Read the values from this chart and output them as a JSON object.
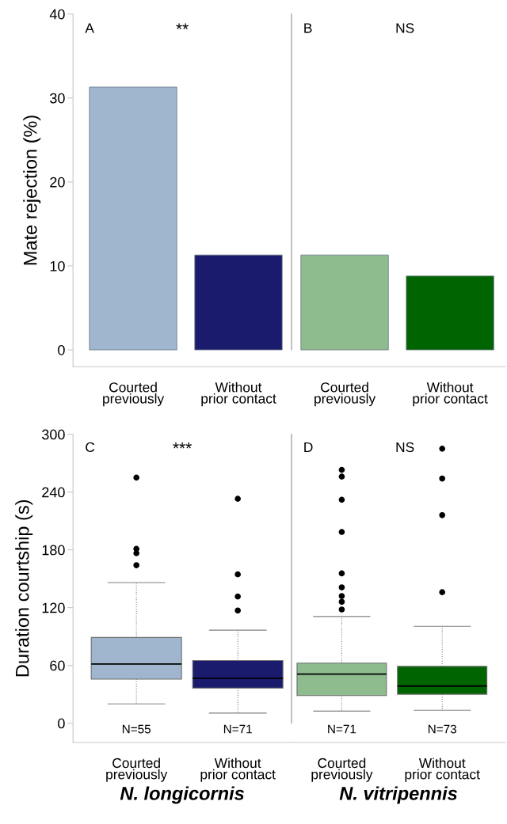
{
  "chart_data": [
    {
      "type": "bar",
      "ylabel": "Mate rejection (%)",
      "categories": [
        "Courted\npreviously",
        "Without\nprior contact"
      ],
      "values": [
        31.3,
        11.3
      ],
      "colors": [
        "#a0b6cf",
        "#1b1b6e"
      ],
      "ylim": [
        -2,
        40
      ],
      "yticks": [
        0,
        10,
        20,
        30,
        40
      ],
      "annotations": [
        "A",
        "**"
      ]
    },
    {
      "type": "bar",
      "categories": [
        "Courted\npreviously",
        "Without\nprior contact"
      ],
      "values": [
        11.3,
        8.8
      ],
      "colors": [
        "#8fbc8f",
        "#006400"
      ],
      "ylim": [
        -2,
        40
      ],
      "tick_labels": "x",
      "annotations": [
        "B",
        "NS"
      ]
    },
    {
      "type": "box",
      "ylabel": "Duration courtship (s)",
      "xlabel": "N. longicornis",
      "categories": [
        "Courted\npreviously",
        "Without\nprior contact"
      ],
      "colors": [
        "#a0b6cf",
        "#1b1b6e"
      ],
      "ylim": [
        -20,
        300
      ],
      "yticks": [
        0,
        60,
        120,
        180,
        240,
        300
      ],
      "boxes": [
        {
          "low": 20,
          "q1": 45.7,
          "median": 61.5,
          "q3": 89,
          "high": 146,
          "outliers": [
            255,
            181,
            176.5,
            164
          ]
        },
        {
          "low": 10.5,
          "q1": 36.5,
          "median": 46.7,
          "q3": 65,
          "high": 96.6,
          "outliers": [
            233,
            154.5,
            131.5,
            117
          ]
        }
      ],
      "annotations": [
        "C",
        "***",
        "N=55",
        "N=71"
      ]
    },
    {
      "type": "box",
      "xlabel": "N. vitripennis",
      "categories": [
        "Courted\npreviously",
        "Without\nprior contact"
      ],
      "colors": [
        "#8fbc8f",
        "#006400"
      ],
      "ylim": [
        -20,
        300
      ],
      "tick_labels": "x",
      "boxes": [
        {
          "low": 12.5,
          "q1": 28.6,
          "median": 51,
          "q3": 62.4,
          "high": 110.7,
          "outliers": [
            263,
            256,
            232,
            198.5,
            155.5,
            141,
            132,
            126,
            118
          ]
        },
        {
          "low": 13.5,
          "q1": 30,
          "median": 38.5,
          "q3": 59,
          "high": 100.6,
          "outliers": [
            285,
            254,
            216,
            136
          ]
        }
      ],
      "annotations": [
        "D",
        "NS",
        "N=71",
        "N=73"
      ]
    }
  ]
}
